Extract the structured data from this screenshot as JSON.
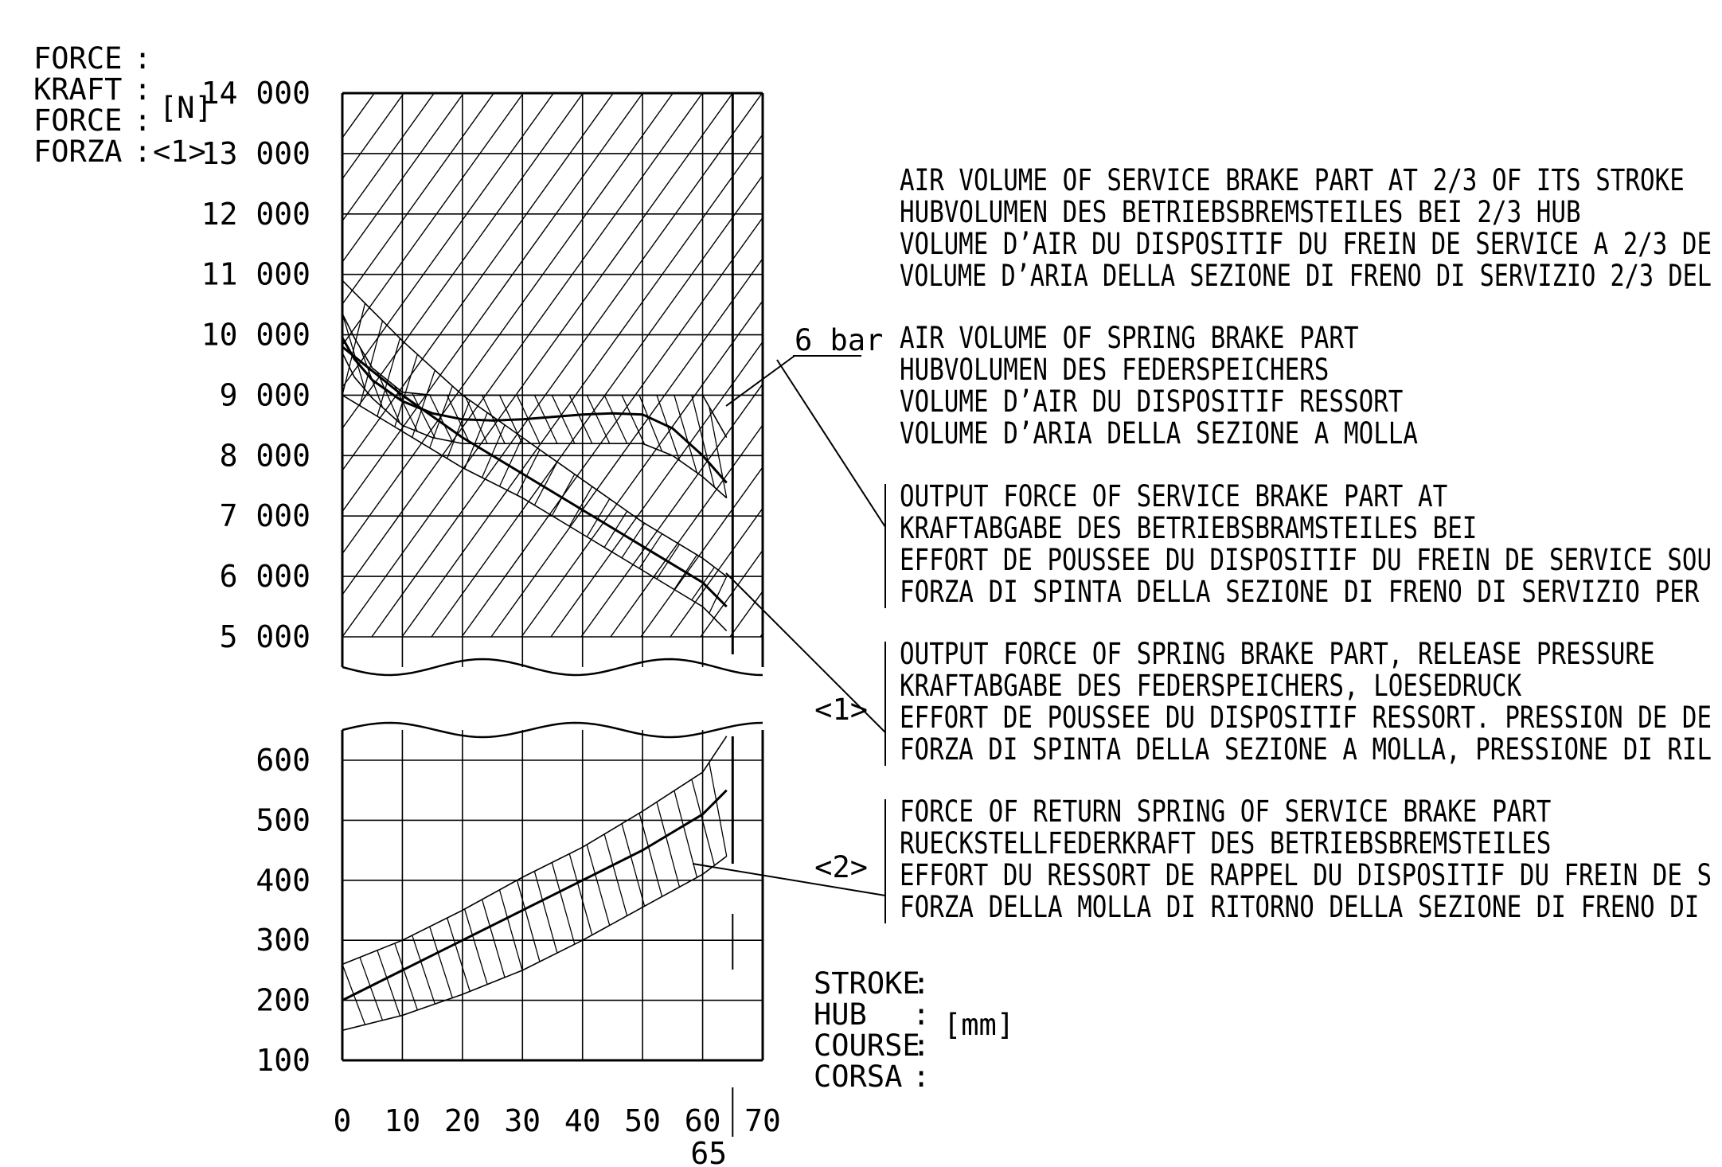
{
  "chart_data": {
    "type": "line",
    "y_label_lines": [
      {
        "word": "FORCE",
        "sep": ":"
      },
      {
        "word": "KRAFT",
        "sep": ":"
      },
      {
        "word": "FORCE",
        "sep": ":"
      },
      {
        "word": "FORZA",
        "sep": ":"
      }
    ],
    "y_unit": "[N]",
    "y_ref": "<1>",
    "x_label_lines": [
      {
        "word": "STROKE",
        "sep": ":"
      },
      {
        "word": "HUB",
        "sep": ":"
      },
      {
        "word": "COURSE",
        "sep": ":"
      },
      {
        "word": "CORSA",
        "sep": ":"
      }
    ],
    "x_unit": "[mm]",
    "x_ticks": [
      "0",
      "10",
      "20",
      "30",
      "40",
      "50",
      "60",
      "70"
    ],
    "x_marker": "65",
    "xlim": [
      0,
      70
    ],
    "upper_panel": {
      "ylim": [
        4500,
        14000
      ],
      "y_ticks": [
        "14 000",
        "13 000",
        "12 000",
        "11 000",
        "10 000",
        "9 000",
        "8 000",
        "7 000",
        "6 000",
        "5 000"
      ]
    },
    "lower_panel": {
      "ylim": [
        100,
        650
      ],
      "y_ticks": [
        "600",
        "500",
        "400",
        "300",
        "200",
        "100"
      ]
    },
    "pressure_label": "6 bar",
    "series": [
      {
        "group": "air_volume_service",
        "values_x": [
          0,
          65
        ],
        "values_y": [
          5000,
          14000
        ]
      },
      {
        "group": "air_volume_spring",
        "values_x": [
          0,
          65
        ],
        "values_y": [
          5000,
          14000
        ]
      },
      {
        "group": "output_service",
        "name": "6 bar",
        "x": [
          0,
          2,
          5,
          10,
          15,
          20,
          25,
          30,
          35,
          40,
          45,
          50,
          55,
          60,
          64
        ],
        "y": [
          9950,
          9600,
          9250,
          8900,
          8700,
          8600,
          8580,
          8600,
          8640,
          8680,
          8700,
          8680,
          8450,
          8000,
          7550
        ],
        "band_upper": [
          10350,
          9950,
          9450,
          9050,
          9000,
          9000,
          9000,
          9000,
          9000,
          9000,
          9000,
          9000,
          9000,
          9000,
          8300
        ],
        "band_lower": [
          9700,
          9300,
          8950,
          8500,
          8300,
          8200,
          8200,
          8200,
          8200,
          8200,
          8200,
          8200,
          8000,
          7650,
          7300
        ]
      },
      {
        "group": "output_spring",
        "x": [
          0,
          10,
          20,
          30,
          40,
          50,
          60,
          64
        ],
        "y": [
          9800,
          9000,
          8300,
          7700,
          7100,
          6500,
          5900,
          5500
        ],
        "band_upper": [
          10900,
          9900,
          9000,
          8300,
          7600,
          6900,
          6300,
          6000
        ],
        "band_lower": [
          9000,
          8400,
          7800,
          7300,
          6700,
          6100,
          5500,
          5100
        ]
      },
      {
        "group": "return_spring",
        "x": [
          0,
          10,
          20,
          30,
          40,
          50,
          60,
          64
        ],
        "y": [
          200,
          250,
          300,
          350,
          400,
          450,
          510,
          550
        ],
        "band_upper": [
          260,
          300,
          350,
          405,
          455,
          515,
          580,
          640
        ],
        "band_lower": [
          150,
          175,
          210,
          250,
          300,
          355,
          410,
          440
        ]
      }
    ],
    "legend": [
      {
        "id": "air_volume_service",
        "ref": "",
        "lines": [
          "AIR VOLUME OF SERVICE BRAKE PART AT 2/3 OF ITS STROKE",
          "HUBVOLUMEN DES BETRIEBSBREMSTEILES BEI 2/3 HUB",
          "VOLUME D’AIR DU DISPOSITIF DU FREIN DE SERVICE A 2/3 DE",
          "VOLUME D’ARIA DELLA SEZIONE DI FRENO DI SERVIZIO 2/3 DEL"
        ]
      },
      {
        "id": "air_volume_spring",
        "ref": "",
        "lines": [
          "AIR VOLUME OF SPRING BRAKE PART",
          "HUBVOLUMEN DES FEDERSPEICHERS",
          "VOLUME D’AIR DU DISPOSITIF RESSORT",
          "VOLUME D’ARIA DELLA SEZIONE A MOLLA"
        ]
      },
      {
        "id": "output_service",
        "ref": "",
        "lines": [
          "OUTPUT FORCE OF SERVICE BRAKE PART AT",
          "KRAFTABGABE DES BETRIEBSBRAMSTEILES BEI",
          "EFFORT DE POUSSEE DU DISPOSITIF DU FREIN DE SERVICE SOU",
          "FORZA DI SPINTA DELLA SEZIONE DI FRENO DI SERVIZIO PER"
        ]
      },
      {
        "id": "output_spring",
        "ref": "<1>",
        "lines": [
          "OUTPUT FORCE OF SPRING BRAKE PART, RELEASE PRESSURE",
          "KRAFTABGABE DES FEDERSPEICHERS, LOESEDRUCK",
          "EFFORT DE POUSSEE DU DISPOSITIF RESSORT. PRESSION DE DE",
          "FORZA DI SPINTA DELLA SEZIONE A MOLLA, PRESSIONE DI RIL"
        ]
      },
      {
        "id": "return_spring",
        "ref": "<2>",
        "lines": [
          "FORCE OF RETURN SPRING OF SERVICE BRAKE PART",
          "RUECKSTELLFEDERKRAFT DES BETRIEBSBREMSTEILES",
          "EFFORT DU RESSORT DE RAPPEL DU DISPOSITIF DU FREIN DE S",
          "FORZA DELLA MOLLA DI RITORNO DELLA SEZIONE DI FRENO DI"
        ]
      }
    ],
    "grid": true,
    "line_color": "#000000",
    "background": "#ffffff"
  }
}
